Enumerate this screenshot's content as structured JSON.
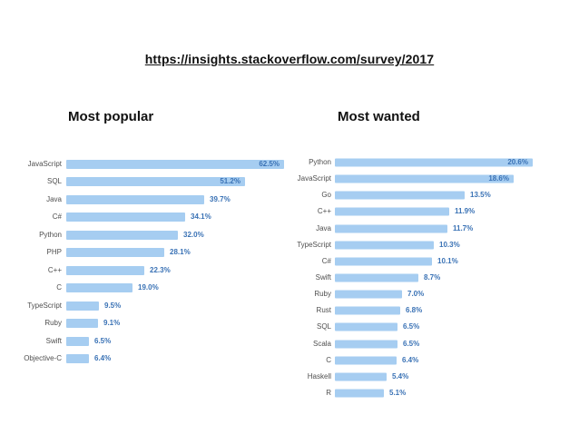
{
  "page": {
    "title_link": "https://insights.stackoverflow.com/survey/2017"
  },
  "sections": [
    {
      "heading": "Most popular"
    },
    {
      "heading": "Most wanted"
    }
  ],
  "chart_data": [
    {
      "type": "bar",
      "orientation": "horizontal",
      "title": "Most popular",
      "categories": [
        "JavaScript",
        "SQL",
        "Java",
        "C#",
        "Python",
        "PHP",
        "C++",
        "C",
        "TypeScript",
        "Ruby",
        "Swift",
        "Objective-C"
      ],
      "values": [
        62.5,
        51.2,
        39.7,
        34.1,
        32.0,
        28.1,
        22.3,
        19.0,
        9.5,
        9.1,
        6.5,
        6.4
      ],
      "value_format": "percent_one_decimal",
      "xlim": [
        0,
        62.5
      ],
      "grid": false,
      "legend": false,
      "bar_color": "#a6cdf1",
      "value_label_color": "#3a72b5",
      "category_label_color": "#4f4f4f",
      "labels_inside_top_n": 2
    },
    {
      "type": "bar",
      "orientation": "horizontal",
      "title": "Most wanted",
      "categories": [
        "Python",
        "JavaScript",
        "Go",
        "C++",
        "Java",
        "TypeScript",
        "C#",
        "Swift",
        "Ruby",
        "Rust",
        "SQL",
        "Scala",
        "C",
        "Haskell",
        "R"
      ],
      "values": [
        20.6,
        18.6,
        13.5,
        11.9,
        11.7,
        10.3,
        10.1,
        8.7,
        7.0,
        6.8,
        6.5,
        6.5,
        6.4,
        5.4,
        5.1
      ],
      "value_format": "percent_one_decimal",
      "xlim": [
        0,
        20.6
      ],
      "grid": false,
      "legend": false,
      "bar_color": "#a6cdf1",
      "value_label_color": "#3a72b5",
      "category_label_color": "#4f4f4f",
      "labels_inside_top_n": 2
    }
  ]
}
